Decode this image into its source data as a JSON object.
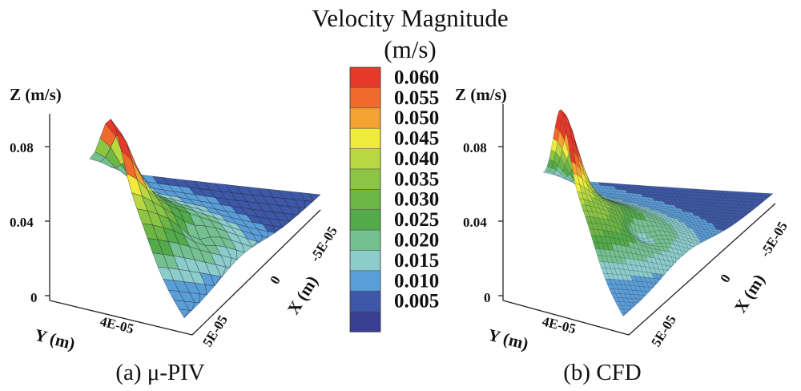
{
  "chart_data": {
    "type": "surface-3d",
    "title_line1": "Velocity Magnitude",
    "title_line2": "(m/s)",
    "colorbar": {
      "levels": [
        "0.060",
        "0.055",
        "0.050",
        "0.045",
        "0.040",
        "0.035",
        "0.030",
        "0.025",
        "0.020",
        "0.015",
        "0.010",
        "0.005"
      ],
      "colors": [
        "#e53a2a",
        "#ef6a2c",
        "#f5a232",
        "#f0ea3c",
        "#b9d740",
        "#8cc443",
        "#6db544",
        "#52aa49",
        "#74c090",
        "#8ccdcc",
        "#5a9ed8",
        "#3c58a6",
        "#3a3f93"
      ]
    },
    "panels": [
      {
        "caption": "(a) μ-PIV",
        "z_label": "Z (m/s)",
        "y_label": "Y (m)",
        "x_label": "X (m)",
        "z_ticks": [
          "0.08",
          "0.04",
          "0"
        ],
        "y_ticks": [
          "4E-05"
        ],
        "x_ticks": [
          "5E-05",
          "0",
          "-5E-05"
        ]
      },
      {
        "caption": "(b) CFD",
        "z_label": "Z (m/s)",
        "y_label": "Y (m)",
        "x_label": "X (m)",
        "z_ticks": [
          "0.08",
          "0.04",
          "0"
        ],
        "y_ticks": [
          "4E-05"
        ],
        "x_ticks": [
          "5E-05",
          "0",
          "-5E-05"
        ]
      }
    ]
  }
}
